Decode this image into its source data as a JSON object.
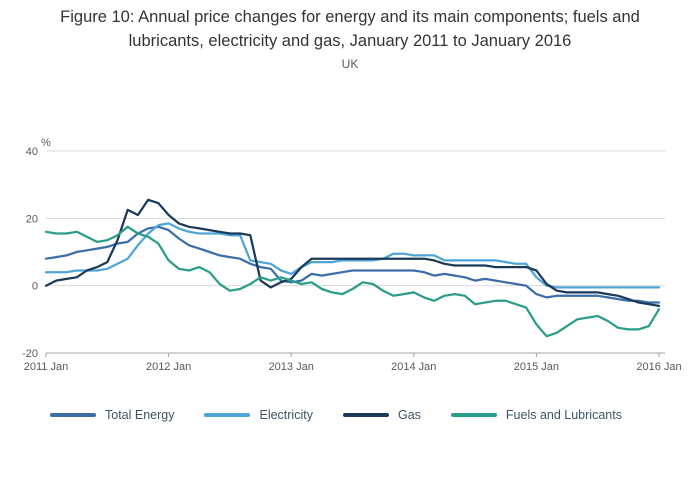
{
  "chart_data": {
    "type": "line",
    "title": "Figure 10: Annual price changes for energy and its main components; fuels and lubricants, electricity and gas, January 2011 to January 2016",
    "subtitle": "UK",
    "unit_label": "%",
    "x_tick_labels": [
      "2011 Jan",
      "2012 Jan",
      "2013 Jan",
      "2014 Jan",
      "2015 Jan",
      "2016 Jan"
    ],
    "y_tick_labels": [
      "40",
      "20",
      "0",
      "-20"
    ],
    "y_tick_values": [
      40,
      20,
      0,
      -20
    ],
    "ylim": [
      -20,
      40
    ],
    "x_months_span": 60,
    "grid": "horizontal",
    "legend_position": "bottom",
    "x_description": "Monthly values from January 2011 (index 0) to January 2016 (index 60)",
    "series": [
      {
        "name": "Total Energy",
        "color": "#3c6da8",
        "values": [
          8.0,
          8.5,
          9.0,
          10.0,
          10.5,
          11.0,
          11.5,
          12.5,
          13.0,
          15.5,
          17.0,
          17.5,
          16.5,
          14.0,
          12.0,
          11.0,
          10.0,
          9.0,
          8.5,
          8.0,
          6.5,
          5.5,
          5.0,
          1.5,
          1.0,
          1.5,
          3.5,
          3.0,
          3.5,
          4.0,
          4.5,
          4.5,
          4.5,
          4.5,
          4.5,
          4.5,
          4.5,
          4.0,
          3.0,
          3.5,
          3.0,
          2.5,
          1.5,
          2.0,
          1.5,
          1.0,
          0.5,
          0.0,
          -2.5,
          -3.5,
          -3.0,
          -3.0,
          -3.0,
          -3.0,
          -3.0,
          -3.5,
          -4.0,
          -4.5,
          -4.5,
          -5.0,
          -5.0
        ]
      },
      {
        "name": "Electricity",
        "color": "#4da5d8",
        "values": [
          4.0,
          4.0,
          4.0,
          4.5,
          4.5,
          4.5,
          5.0,
          6.5,
          8.0,
          12.0,
          15.5,
          18.0,
          18.5,
          17.0,
          16.0,
          15.5,
          15.5,
          15.5,
          15.0,
          15.0,
          7.5,
          7.0,
          6.5,
          4.5,
          3.5,
          5.5,
          7.0,
          7.0,
          7.0,
          7.5,
          7.5,
          7.5,
          7.5,
          8.0,
          9.5,
          9.5,
          9.0,
          9.0,
          9.0,
          7.5,
          7.5,
          7.5,
          7.5,
          7.5,
          7.5,
          7.0,
          6.5,
          6.5,
          2.5,
          0.0,
          -0.5,
          -0.5,
          -0.5,
          -0.5,
          -0.5,
          -0.5,
          -0.5,
          -0.5,
          -0.5,
          -0.5,
          -0.5
        ]
      },
      {
        "name": "Gas",
        "color": "#1b3a5a",
        "values": [
          0.0,
          1.5,
          2.0,
          2.5,
          4.5,
          5.5,
          7.0,
          13.5,
          22.5,
          21.0,
          25.5,
          24.5,
          21.0,
          18.5,
          17.5,
          17.0,
          16.5,
          16.0,
          15.5,
          15.5,
          15.0,
          1.5,
          -0.5,
          1.0,
          2.0,
          5.5,
          8.0,
          8.0,
          8.0,
          8.0,
          8.0,
          8.0,
          8.0,
          8.0,
          8.0,
          8.0,
          8.0,
          8.0,
          7.5,
          6.5,
          6.0,
          6.0,
          6.0,
          6.0,
          5.5,
          5.5,
          5.5,
          5.5,
          4.5,
          0.5,
          -1.5,
          -2.0,
          -2.0,
          -2.0,
          -2.0,
          -2.5,
          -3.0,
          -4.0,
          -5.0,
          -5.5,
          -6.0
        ]
      },
      {
        "name": "Fuels and Lubricants",
        "color": "#2a9d8a",
        "values": [
          16.0,
          15.5,
          15.5,
          16.0,
          14.5,
          13.0,
          13.5,
          15.0,
          17.5,
          15.5,
          14.5,
          12.5,
          7.5,
          5.0,
          4.5,
          5.5,
          4.0,
          0.5,
          -1.5,
          -1.0,
          0.5,
          2.5,
          1.5,
          2.5,
          1.5,
          0.5,
          1.0,
          -1.0,
          -2.0,
          -2.5,
          -1.0,
          1.0,
          0.5,
          -1.5,
          -3.0,
          -2.5,
          -2.0,
          -3.5,
          -4.5,
          -3.0,
          -2.5,
          -3.0,
          -5.5,
          -5.0,
          -4.5,
          -4.5,
          -5.5,
          -6.5,
          -11.5,
          -15.0,
          -14.0,
          -12.0,
          -10.0,
          -9.5,
          -9.0,
          -10.5,
          -12.5,
          -13.0,
          -13.0,
          -12.0,
          -7.0
        ]
      }
    ]
  }
}
